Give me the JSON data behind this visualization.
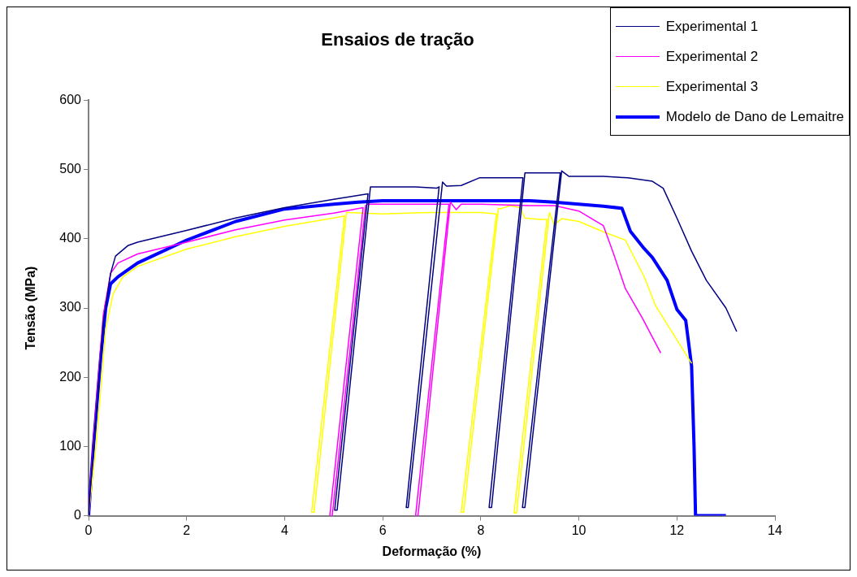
{
  "chart_data": {
    "type": "line",
    "title": "Ensaios de tração",
    "xlabel": "Deformação (%)",
    "ylabel": "Tensão (MPa)",
    "xlim": [
      0,
      14
    ],
    "xticks": [
      0,
      2,
      4,
      6,
      8,
      10,
      12,
      14
    ],
    "ylim": [
      0,
      600
    ],
    "yticks": [
      0,
      100,
      200,
      300,
      400,
      500,
      600
    ],
    "grid": false,
    "legend": "top right",
    "marker": "none",
    "series": [
      {
        "name": "Experimental 1",
        "color": "#000080",
        "x": [
          0,
          0.1,
          0.3,
          0.45,
          0.55,
          0.8,
          1,
          2,
          3,
          4,
          5,
          5.7,
          5.02,
          5.07,
          5.75,
          6,
          6.67,
          7.1,
          7.15,
          6.48,
          6.52,
          7.22,
          7.3,
          7.6,
          7.97,
          8.86,
          8.17,
          8.22,
          8.9,
          9.6,
          9.62,
          8.85,
          8.9,
          9.65,
          9.8,
          10,
          10.5,
          11,
          11.5,
          11.72,
          12,
          12.3,
          12.6,
          13,
          13.22
        ],
        "values": [
          0,
          100,
          280,
          350,
          375,
          390,
          395,
          412,
          430,
          445,
          457,
          465,
          8,
          8,
          475,
          475,
          475,
          473,
          475,
          12,
          12,
          482,
          476,
          477,
          488,
          488,
          12,
          12,
          495,
          495,
          495,
          12,
          12,
          498,
          490,
          490,
          490,
          488,
          483,
          473,
          430,
          382,
          340,
          300,
          266
        ]
      },
      {
        "name": "Experimental 2",
        "color": "#ff00ff",
        "x": [
          0,
          0.1,
          0.3,
          0.45,
          0.6,
          1,
          2,
          3,
          4,
          5,
          5.6,
          4.92,
          4.97,
          5.65,
          5.7,
          6.5,
          7.0,
          7.35,
          6.67,
          6.72,
          7.38,
          7.5,
          7.6,
          8,
          9,
          9.5,
          10,
          10.5,
          10.71,
          10.95,
          11.3,
          11.67
        ],
        "values": [
          0,
          110,
          290,
          350,
          365,
          378,
          395,
          413,
          427,
          437,
          445,
          0,
          0,
          448,
          450,
          450,
          450,
          450,
          0,
          0,
          453,
          442,
          450,
          450,
          448,
          448,
          440,
          419,
          378,
          328,
          285,
          235
        ]
      },
      {
        "name": "Experimental 3",
        "color": "#ffff00",
        "x": [
          0,
          0.15,
          0.35,
          0.5,
          0.7,
          1,
          2,
          3,
          4,
          5,
          5.22,
          4.55,
          4.6,
          5.26,
          5.3,
          6,
          7,
          8,
          8.32,
          7.6,
          7.65,
          8.36,
          8.4,
          8.6,
          8.8,
          8.9,
          9.2,
          9.35,
          8.68,
          8.73,
          9.4,
          9.5,
          9.65,
          10,
          10.5,
          10.95,
          11.34,
          11.56,
          12.3
        ],
        "values": [
          0,
          100,
          270,
          320,
          345,
          360,
          385,
          403,
          418,
          430,
          433,
          5,
          5,
          438,
          438,
          436,
          438,
          438,
          436,
          5,
          5,
          444,
          443,
          448,
          445,
          430,
          428,
          428,
          4,
          4,
          438,
          420,
          429,
          425,
          410,
          398,
          344,
          304,
          220
        ]
      },
      {
        "name": "Modelo de Dano de Lemaitre",
        "color": "#0000ff",
        "x": [
          0,
          0.1,
          0.25,
          0.35,
          0.45,
          0.6,
          1,
          2,
          3,
          4,
          5,
          5.5,
          6,
          7,
          8,
          9,
          9.5,
          10,
          10.5,
          10.88,
          11.05,
          11.33,
          11.5,
          11.8,
          12,
          12.18,
          12.3,
          12.35,
          12.38,
          13
        ],
        "values": [
          0,
          100,
          230,
          300,
          335,
          345,
          365,
          398,
          425,
          443,
          450,
          453,
          455,
          455,
          455,
          455,
          453,
          450,
          447,
          444,
          411,
          386,
          373,
          340,
          298,
          282,
          216,
          100,
          0,
          0
        ]
      }
    ]
  }
}
